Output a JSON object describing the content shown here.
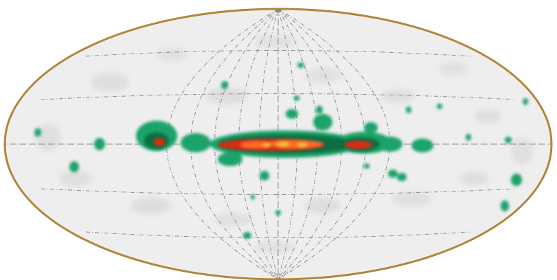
{
  "map": {
    "projection": "aitoff",
    "background_color": "#ffffff",
    "sky_fill_color": "#eeeeee",
    "border_color": "#b0863a",
    "grid_color": "#8a8a8a",
    "grid_style": "dash-dot",
    "meridian_count": 12,
    "parallel_count": 5,
    "color_scale": [
      "#f4f4f4",
      "#cfcfcf",
      "#1aa36b",
      "#0a6e3f",
      "#d92c12",
      "#ff6a2a",
      "#f2c43a"
    ],
    "color_meaning": {
      "faint": "#cfcfcf",
      "medium": "#1aa36b",
      "strong": "#d92c12",
      "peak": "#f2c43a"
    }
  }
}
